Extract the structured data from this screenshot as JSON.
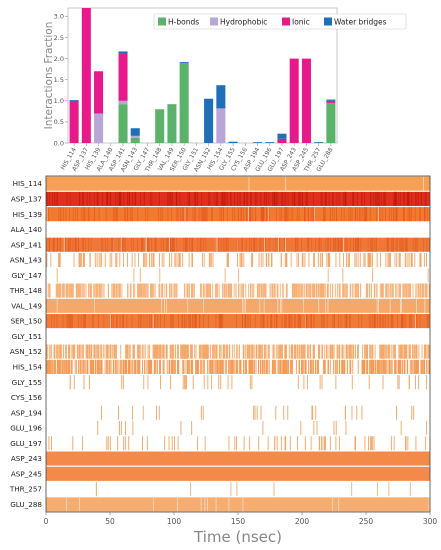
{
  "chart_data": [
    {
      "type": "bar",
      "stacked": true,
      "ylabel": "Interactions Fraction",
      "ylim": [
        0,
        3.2
      ],
      "yticks": [
        "0.0",
        "0.5",
        "1.0",
        "1.5",
        "2.0",
        "2.5",
        "3.0"
      ],
      "ytick_values": [
        0,
        0.5,
        1.0,
        1.5,
        2.0,
        2.5,
        3.0
      ],
      "legend_position": "top-right",
      "categories": [
        "HIS_114",
        "ASP_137",
        "HIS_139",
        "ALA_140",
        "ASP_141",
        "ASN_143",
        "GLY_147",
        "THR_148",
        "VAL_149",
        "SER_150",
        "GLY_151",
        "ASN_152",
        "HIS_154",
        "GLY_155",
        "CYS_156",
        "ASP_194",
        "GLU_196",
        "GLU_197",
        "ASP_243",
        "ASP_245",
        "THR_257",
        "GLU_288"
      ],
      "series": [
        {
          "name": "H-bonds",
          "color": "#5ab26b",
          "values": [
            0,
            0,
            0,
            0,
            0.92,
            0.12,
            0,
            0.8,
            0.92,
            1.9,
            0,
            0,
            0,
            0,
            0,
            0,
            0,
            0,
            0,
            0,
            0,
            0.95
          ]
        },
        {
          "name": "Hydrophobic",
          "color": "#b8a6d8",
          "values": [
            0,
            0,
            0.7,
            0,
            0.08,
            0.05,
            0,
            0,
            0,
            0,
            0,
            0,
            0.82,
            0,
            0,
            0,
            0,
            0,
            0,
            0,
            0,
            0
          ]
        },
        {
          "name": "Ionic",
          "color": "#e8198a",
          "values": [
            1.0,
            3.2,
            1.0,
            0,
            1.12,
            0,
            0,
            0,
            0,
            0,
            0,
            0,
            0,
            0,
            0,
            0,
            0,
            0.1,
            2.0,
            2.0,
            0,
            0.05
          ]
        },
        {
          "name": "Water bridges",
          "color": "#1f6fb8",
          "values": [
            0.02,
            0,
            0,
            0,
            0.05,
            0.18,
            0,
            0,
            0,
            0.02,
            0,
            1.05,
            0.55,
            0.03,
            0,
            0.02,
            0.02,
            0.12,
            0,
            0,
            0.02,
            0.03
          ]
        }
      ]
    },
    {
      "type": "heatmap",
      "xlabel": "Time (nsec)",
      "xlim": [
        0,
        300
      ],
      "xticks": [
        "0",
        "50",
        "100",
        "150",
        "200",
        "250",
        "300"
      ],
      "xtick_values": [
        0,
        50,
        100,
        150,
        200,
        250,
        300
      ],
      "rows": [
        {
          "label": "HIS_114",
          "density": 0.99,
          "color": "#f5a055"
        },
        {
          "label": "ASP_137",
          "density": 1.0,
          "color": "#e0301b"
        },
        {
          "label": "HIS_139",
          "density": 0.97,
          "color": "#f07a30"
        },
        {
          "label": "ALA_140",
          "density": 0.0,
          "color": "#f5b070"
        },
        {
          "label": "ASP_141",
          "density": 0.95,
          "color": "#f07835"
        },
        {
          "label": "ASN_143",
          "density": 0.3,
          "color": "#f2a565"
        },
        {
          "label": "GLY_147",
          "density": 0.02,
          "color": "#f5b070"
        },
        {
          "label": "THR_148",
          "density": 0.82,
          "color": "#f7b075"
        },
        {
          "label": "VAL_149",
          "density": 0.9,
          "color": "#f5a868"
        },
        {
          "label": "SER_150",
          "density": 0.98,
          "color": "#f07a38"
        },
        {
          "label": "GLY_151",
          "density": 0.0,
          "color": "#f5b070"
        },
        {
          "label": "ASN_152",
          "density": 0.85,
          "color": "#f5a868"
        },
        {
          "label": "HIS_154",
          "density": 0.88,
          "color": "#f39a55"
        },
        {
          "label": "GLY_155",
          "density": 0.08,
          "color": "#f2a565"
        },
        {
          "label": "CYS_156",
          "density": 0.0,
          "color": "#f5b070"
        },
        {
          "label": "ASP_194",
          "density": 0.05,
          "color": "#f2a565"
        },
        {
          "label": "GLU_196",
          "density": 0.03,
          "color": "#f2a565"
        },
        {
          "label": "GLU_197",
          "density": 0.12,
          "color": "#f2a565"
        },
        {
          "label": "ASP_243",
          "density": 1.0,
          "color": "#f38a4a"
        },
        {
          "label": "ASP_245",
          "density": 1.0,
          "color": "#f38a4a"
        },
        {
          "label": "THR_257",
          "density": 0.02,
          "color": "#f5b070"
        },
        {
          "label": "GLU_288",
          "density": 0.95,
          "color": "#f7ac70"
        }
      ]
    }
  ]
}
